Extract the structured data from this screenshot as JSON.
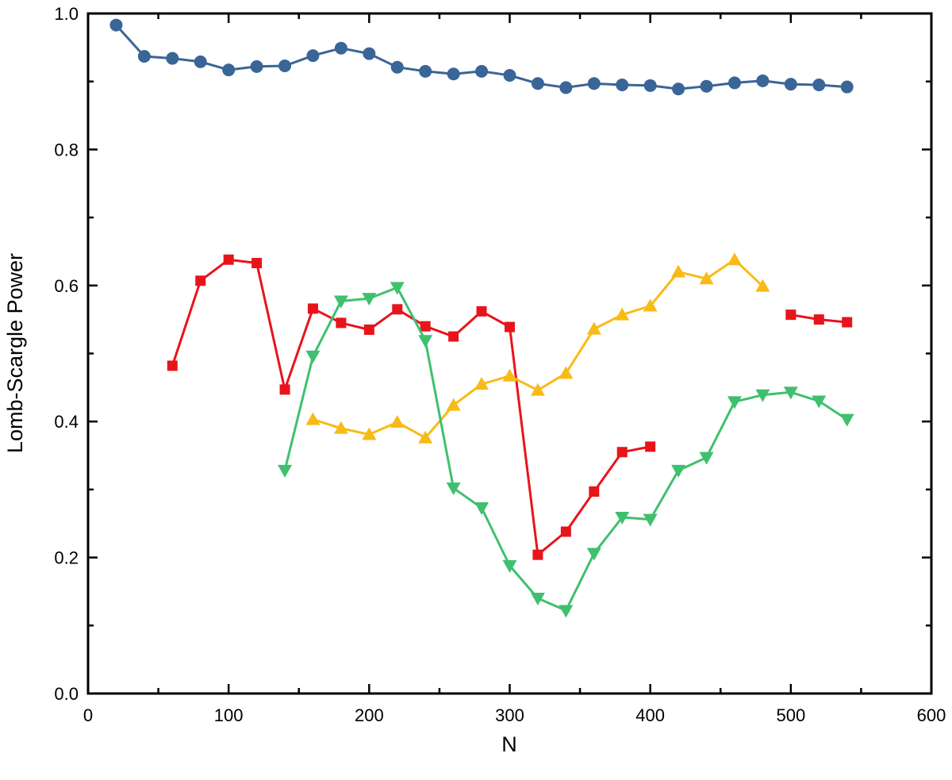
{
  "chart_data": {
    "type": "line",
    "title": "",
    "xlabel": "N",
    "ylabel": "Lomb-Scargle Power",
    "xlim": [
      0,
      600
    ],
    "ylim": [
      0,
      1.0
    ],
    "x_ticks": [
      0,
      100,
      200,
      300,
      400,
      500,
      600
    ],
    "x_tick_labels": [
      "0",
      "100",
      "200",
      "300",
      "400",
      "500",
      "600"
    ],
    "y_ticks": [
      0,
      0.2,
      0.4,
      0.6,
      0.8,
      1.0
    ],
    "y_tick_labels": [
      "0.0",
      "0.2",
      "0.4",
      "0.6",
      "0.8",
      "1.0"
    ],
    "grid": false,
    "legend": "none",
    "series": [
      {
        "color": "#3a6597",
        "marker": "circle",
        "segments": [
          {
            "x": [
              20,
              40,
              60,
              80,
              100,
              120,
              140,
              160,
              180,
              200,
              220,
              240,
              260,
              280,
              300,
              320,
              340,
              360,
              380,
              400,
              420,
              440,
              460,
              480,
              500,
              520,
              540
            ],
            "y": [
              0.983,
              0.937,
              0.934,
              0.929,
              0.917,
              0.922,
              0.923,
              0.938,
              0.949,
              0.941,
              0.921,
              0.915,
              0.911,
              0.915,
              0.909,
              0.897,
              0.891,
              0.897,
              0.895,
              0.894,
              0.889,
              0.893,
              0.898,
              0.901,
              0.896,
              0.895,
              0.892
            ]
          }
        ]
      },
      {
        "color": "#e8141c",
        "marker": "square",
        "segments": [
          {
            "x": [
              60,
              80,
              100,
              120,
              140,
              160,
              180,
              200,
              220,
              240,
              260,
              280,
              300,
              320,
              340,
              360,
              380,
              400
            ],
            "y": [
              0.482,
              0.607,
              0.638,
              0.633,
              0.447,
              0.566,
              0.545,
              0.535,
              0.565,
              0.54,
              0.525,
              0.562,
              0.539,
              0.204,
              0.238,
              0.297,
              0.355,
              0.363
            ]
          },
          {
            "x": [
              500,
              520,
              540
            ],
            "y": [
              0.557,
              0.55,
              0.546
            ]
          }
        ]
      },
      {
        "color": "#f8bb16",
        "marker": "triangle-up",
        "segments": [
          {
            "x": [
              160,
              180,
              200,
              220,
              240,
              260,
              280,
              300,
              320,
              340,
              360,
              380,
              400,
              420,
              440,
              460,
              480
            ],
            "y": [
              0.403,
              0.39,
              0.381,
              0.399,
              0.376,
              0.424,
              0.455,
              0.467,
              0.446,
              0.471,
              0.536,
              0.557,
              0.57,
              0.62,
              0.61,
              0.638,
              0.599
            ]
          }
        ]
      },
      {
        "color": "#3fc06f",
        "marker": "triangle-down",
        "segments": [
          {
            "x": [
              140,
              160,
              180,
              200,
              220,
              240,
              260,
              280,
              300,
              320,
              340,
              360,
              380,
              400,
              420,
              440,
              460,
              480,
              500,
              520,
              540
            ],
            "y": [
              0.328,
              0.496,
              0.577,
              0.581,
              0.597,
              0.519,
              0.302,
              0.273,
              0.188,
              0.14,
              0.122,
              0.206,
              0.259,
              0.256,
              0.328,
              0.347,
              0.429,
              0.439,
              0.443,
              0.43,
              0.403
            ]
          }
        ]
      }
    ]
  }
}
